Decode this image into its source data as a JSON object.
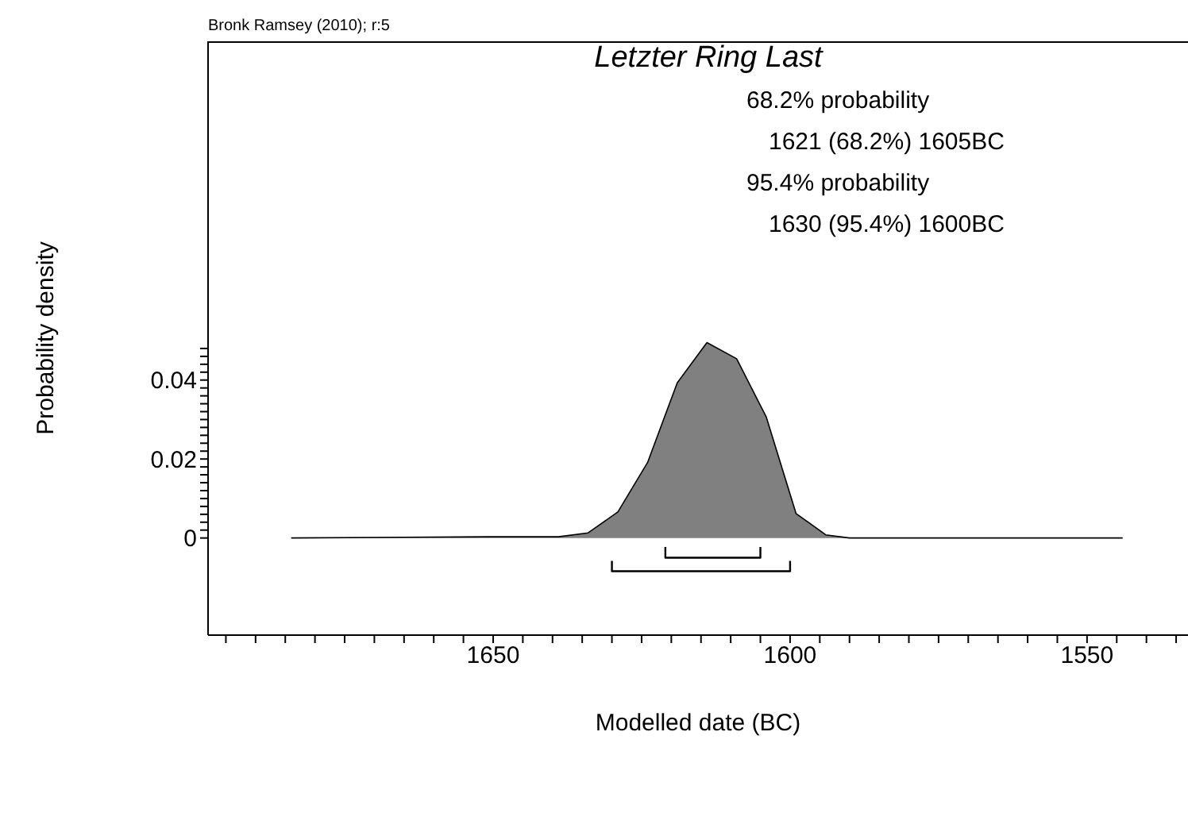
{
  "chart_data": {
    "type": "area",
    "title": "Letzter Ring Last",
    "xlabel": "Modelled date (BC)",
    "ylabel": "Probability density",
    "annotations": [
      "Bronk Ramsey (2010); r:5",
      "68.2% probability",
      "1621 (68.2%) 1605BC",
      "95.4% probability",
      "1630 (95.4%) 1600BC"
    ],
    "series": [
      {
        "color": "#808080",
        "x": [
          1684,
          1651,
          1639,
          1634,
          1629,
          1624,
          1619,
          1614,
          1609,
          1604,
          1599,
          1594,
          1590,
          1544
        ],
        "values": [
          0,
          0.0003,
          0.0003,
          0.0013,
          0.0066,
          0.0191,
          0.0393,
          0.0495,
          0.0454,
          0.0306,
          0.0062,
          0.0008,
          0,
          0
        ]
      },
      {
        "type": "line",
        "color": "#000000",
        "x": [
          1621,
          1621,
          1605,
          1605
        ],
        "values": [
          -0.0023,
          -0.005,
          -0.005,
          -0.0023
        ]
      },
      {
        "type": "line",
        "color": "#000000",
        "x": [
          1630,
          1630,
          1600,
          1600
        ],
        "values": [
          -0.0058,
          -0.0084,
          -0.0084,
          -0.0058
        ]
      }
    ],
    "xlim": [
      1698,
      1533
    ],
    "xticks": [
      {
        "value": 1695,
        "label": null
      },
      {
        "value": 1690,
        "label": null
      },
      {
        "value": 1685,
        "label": null
      },
      {
        "value": 1680,
        "label": null
      },
      {
        "value": 1675,
        "label": null
      },
      {
        "value": 1670,
        "label": null
      },
      {
        "value": 1665,
        "label": null
      },
      {
        "value": 1660,
        "label": null
      },
      {
        "value": 1655,
        "label": null
      },
      1650,
      {
        "value": 1645,
        "label": null
      },
      {
        "value": 1640,
        "label": null
      },
      {
        "value": 1635,
        "label": null
      },
      {
        "value": 1630,
        "label": null
      },
      {
        "value": 1625,
        "label": null
      },
      {
        "value": 1620,
        "label": null
      },
      {
        "value": 1615,
        "label": null
      },
      {
        "value": 1610,
        "label": null
      },
      {
        "value": 1605,
        "label": null
      },
      1600,
      {
        "value": 1595,
        "label": null
      },
      {
        "value": 1590,
        "label": null
      },
      {
        "value": 1585,
        "label": null
      },
      {
        "value": 1580,
        "label": null
      },
      {
        "value": 1575,
        "label": null
      },
      {
        "value": 1570,
        "label": null
      },
      {
        "value": 1565,
        "label": null
      },
      {
        "value": 1560,
        "label": null
      },
      {
        "value": 1555,
        "label": null
      },
      1550,
      {
        "value": 1545,
        "label": null
      },
      {
        "value": 1540,
        "label": null
      },
      {
        "value": 1535,
        "label": null
      }
    ],
    "ylim": [
      -0.0246,
      0.1258
    ],
    "yticks": [
      0,
      {
        "value": 0.002,
        "label": null
      },
      {
        "value": 0.004,
        "label": null
      },
      {
        "value": 0.006,
        "label": null
      },
      {
        "value": 0.008,
        "label": null
      },
      {
        "value": 0.01,
        "label": null
      },
      {
        "value": 0.012,
        "label": null
      },
      {
        "value": 0.014,
        "label": null
      },
      {
        "value": 0.016,
        "label": null
      },
      {
        "value": 0.018,
        "label": null
      },
      0.02,
      {
        "value": 0.022,
        "label": null
      },
      {
        "value": 0.024,
        "label": null
      },
      {
        "value": 0.026,
        "label": null
      },
      {
        "value": 0.028,
        "label": null
      },
      {
        "value": 0.03,
        "label": null
      },
      {
        "value": 0.032,
        "label": null
      },
      {
        "value": 0.034,
        "label": null
      },
      {
        "value": 0.036,
        "label": null
      },
      {
        "value": 0.038,
        "label": null
      },
      0.04,
      {
        "value": 0.042,
        "label": null
      },
      {
        "value": 0.044,
        "label": null
      },
      {
        "value": 0.046,
        "label": null
      },
      {
        "value": 0.048,
        "label": null
      }
    ],
    "grid": false,
    "marker": "none",
    "line_style": "solid"
  }
}
